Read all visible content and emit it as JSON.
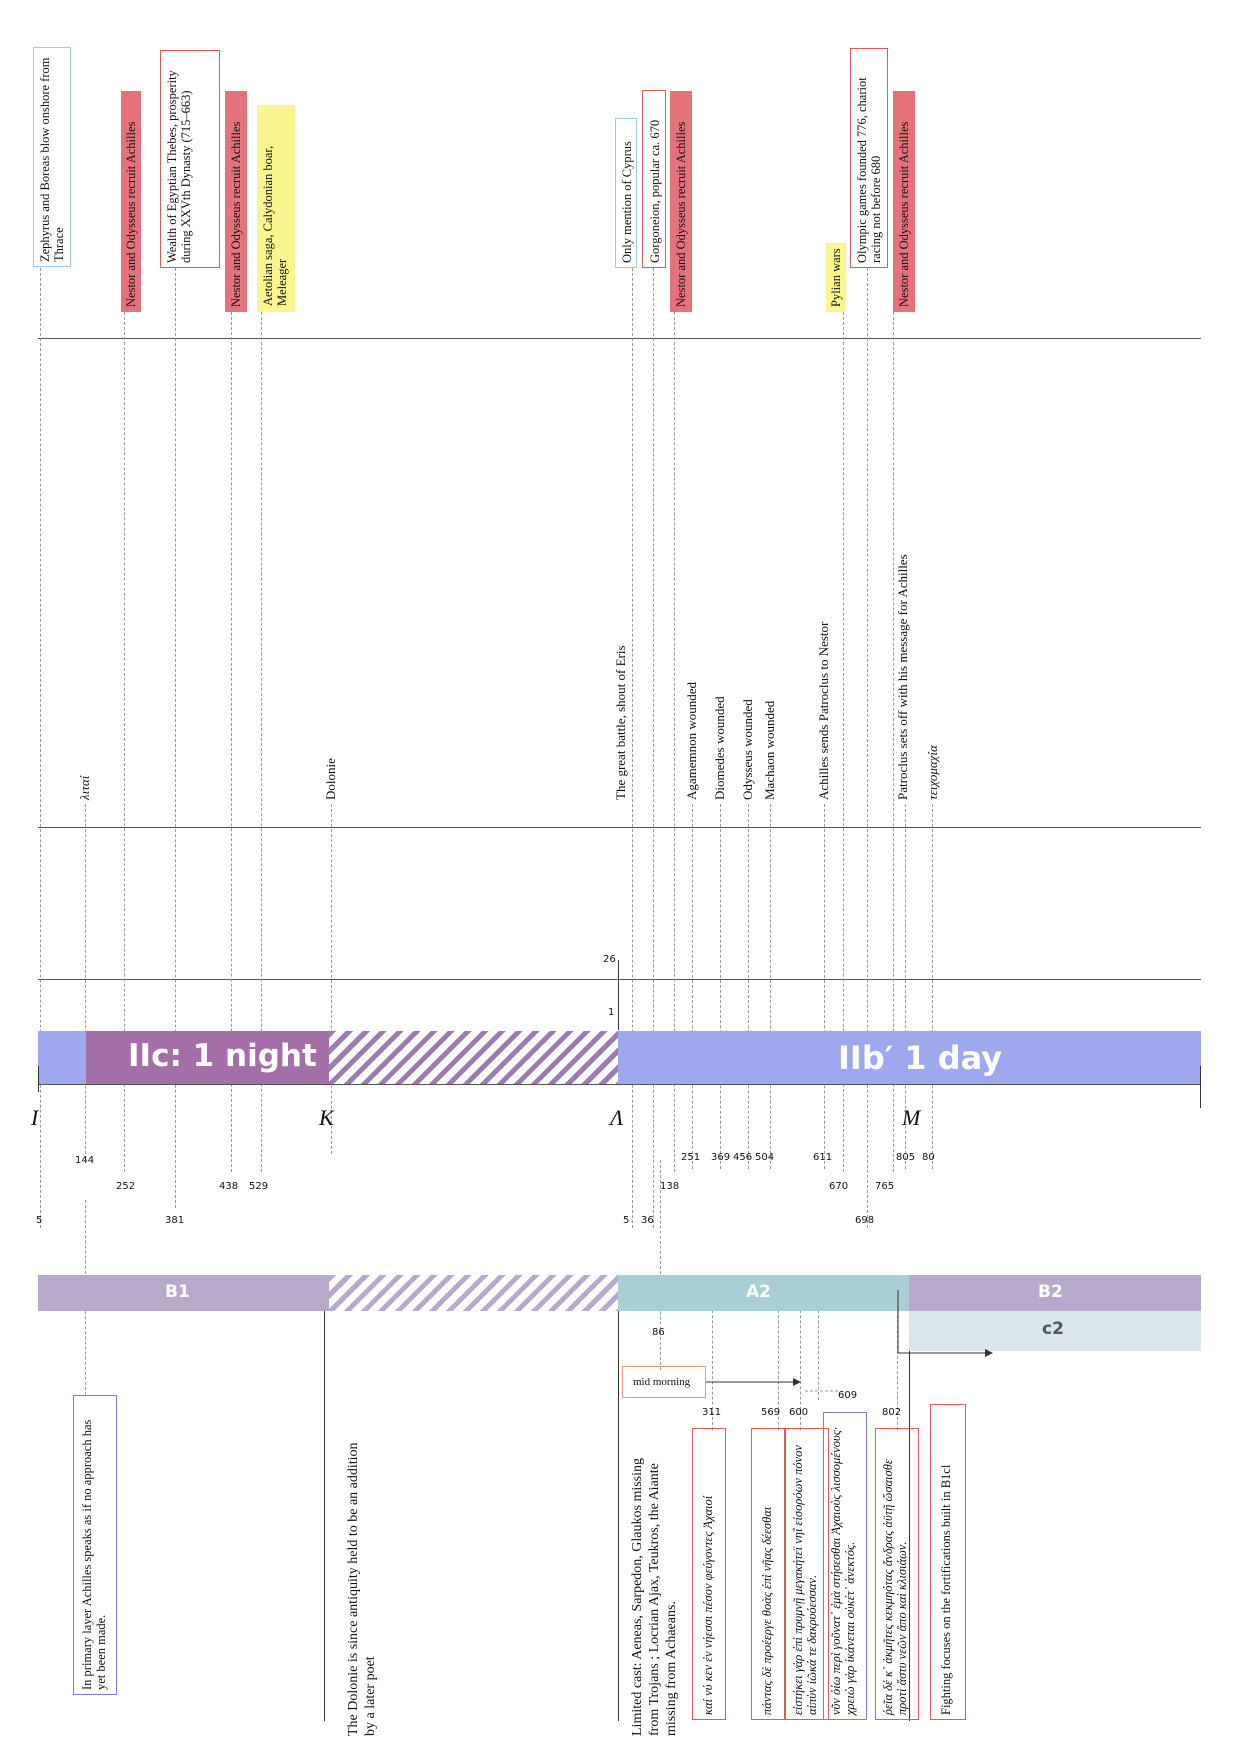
{
  "top_boxes": {
    "zephyrus": "Zephyrus and Boreas blow onshore from Thrace",
    "nestor1": "Nestor and Odysseus recruit Achilles",
    "thebes": "Wealth of Egyptian Thebes, prosperity during XXVth Dynasty (715–663)",
    "nestor2": "Nestor and Odysseus recruit Achilles",
    "aetolian": "Aetolian saga, Calydonian boar, Meleager",
    "cyprus": "Only mention of Cyprus",
    "gorgoneion": "Gorgoneion, popular ca. 670",
    "nestor3": "Nestor and Odysseus recruit Achilles",
    "pylian": "Pylian wars",
    "olympic": "Olympic games founded 776, chariot racing not before 680",
    "nestor4": "Nestor and Odysseus recruit Achilles"
  },
  "mid_labels": {
    "litai": "λιταί",
    "dolonie": "Dolonie",
    "great_battle": "The great battle, shout of Eris",
    "agamemnon": "Agamemnon wounded",
    "diomedes": "Diomedes wounded",
    "odysseus": "Odysseus wounded",
    "machaon": "Machaon wounded",
    "achilles_sends": "Achilles sends Patroclus to Nestor",
    "patroclus": "Patroclus sets off with his message for Achilles",
    "teichomachia": "τειχομαχία"
  },
  "timeline": {
    "num_26": "26",
    "num_1": "1",
    "night_label": "IIc: 1 night",
    "day_label": "IIb′ 1 day",
    "books": [
      "I",
      "K",
      "Λ",
      "M"
    ]
  },
  "line_numbers": {
    "row1": [
      "144",
      "251",
      "369",
      "456",
      "504",
      "611",
      "805",
      "80"
    ],
    "row2": [
      "252",
      "438",
      "529",
      "138",
      "670",
      "765"
    ],
    "row3": [
      "5",
      "381",
      "5",
      "36",
      "698"
    ]
  },
  "segments": {
    "b1": "B1",
    "a2": "A2",
    "b2": "B2",
    "c2": "c2"
  },
  "lower": {
    "num_86": "86",
    "mid_morning": "mid morning",
    "num_609": "609",
    "num_311": "311",
    "num_569": "569",
    "num_600": "600",
    "num_802": "802",
    "primary_layer": "In primary layer Achilles speaks as if no approach has yet been made.",
    "dolonie_note": "The Dolonie is since antiquity held to be an addition by a later poet",
    "limited_cast": "Limited cast: Aeneas, Sarpedon, Glaukos missing from Trojans ; Locrian Ajax, Teukros, the Aiante missing from Achaeans.",
    "greek1": "καί νύ κεν ἐν νήεσσι πέσον φεύγοντες Ἀχαιοί",
    "greek2": "πάντας δὲ προέεργε θοὰς ἐπὶ νῆας δέεσθαι",
    "greek3": "εἰστήκει γὰρ ἐπὶ πρυμνῇ μεγακήτεϊ νηΐ εἰσορόων πόνον αἰπὺν ἰῶκά τε δακρυόεσσαν.",
    "greek4": "νῦν ὀίω περὶ γοῦνατ᾽ ἐμὰ στήσεσθαι Ἀχαιοὺς λισσομένους· χρειὼ γὰρ ἱκάνεται οὐκέτ᾽ ἀνεκτός.",
    "greek5": "ῥεῖα δέ κ᾽ ἀκμῆτες κεκμηότας ἄνδρας ἀϋτῇ ὤσαισθε προτὶ ἄστυ νεῶν ἄπο καὶ κλισιάων.",
    "fortifications": "Fighting focuses on the fortifications built in B1cl"
  },
  "colors": {
    "red_fill": "#e4727a",
    "yellow_fill": "#faf58f",
    "blue_outline": "#9fcbdc",
    "red_outline": "#e05a5a",
    "night_purple": "#a46fa6",
    "day_blue": "#9ea8ef",
    "b_seg": "#b8a9cc",
    "a_seg": "#a9ced6",
    "c_seg": "#d9e6ee"
  }
}
